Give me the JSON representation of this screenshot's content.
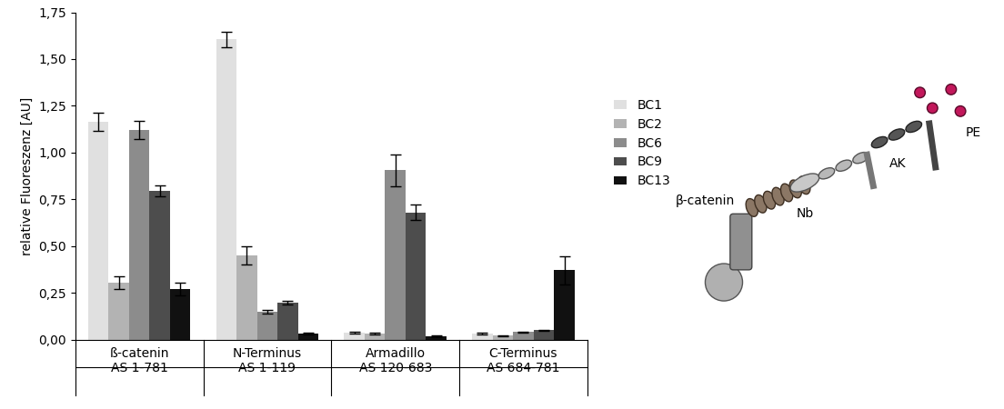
{
  "chart_data": {
    "type": "bar",
    "y_label": "relative Fluoreszenz [AU]",
    "categories": [
      "ß-catenin\nAS 1-781",
      "N-Terminus\nAS 1-119",
      "Armadillo\nAS 120-683",
      "C-Terminus\nAS 684-781"
    ],
    "series": [
      {
        "name": "BC1",
        "color": "#e0e0e0",
        "values": [
          1.165,
          1.605,
          0.035,
          0.03
        ],
        "errors": [
          0.05,
          0.04,
          0.005,
          0.005
        ]
      },
      {
        "name": "BC2",
        "color": "#b3b3b3",
        "values": [
          0.305,
          0.45,
          0.03,
          0.02
        ],
        "errors": [
          0.035,
          0.05,
          0.005,
          0.003
        ]
      },
      {
        "name": "BC6",
        "color": "#8c8c8c",
        "values": [
          1.12,
          0.15,
          0.905,
          0.04
        ],
        "errors": [
          0.05,
          0.01,
          0.085,
          0.003
        ]
      },
      {
        "name": "BC9",
        "color": "#4d4d4d",
        "values": [
          0.795,
          0.195,
          0.68,
          0.05
        ],
        "errors": [
          0.03,
          0.01,
          0.04,
          0.003
        ]
      },
      {
        "name": "BC13",
        "color": "#111111",
        "values": [
          0.27,
          0.03,
          0.015,
          0.37
        ],
        "errors": [
          0.035,
          0.005,
          0.005,
          0.075
        ]
      }
    ],
    "ylim": [
      0,
      1.75
    ],
    "yticks": [
      {
        "value": 0,
        "label": "0,00"
      },
      {
        "value": 0.25,
        "label": "0,25"
      },
      {
        "value": 0.5,
        "label": "0,50"
      },
      {
        "value": 0.75,
        "label": "0,75"
      },
      {
        "value": 1.0,
        "label": "1,00"
      },
      {
        "value": 1.25,
        "label": "1,25"
      },
      {
        "value": 1.5,
        "label": "1,50"
      },
      {
        "value": 1.75,
        "label": "1,75"
      }
    ],
    "legend": "center left",
    "annotations": [
      "β-catenin",
      "Nb",
      "AK",
      "PE"
    ]
  }
}
